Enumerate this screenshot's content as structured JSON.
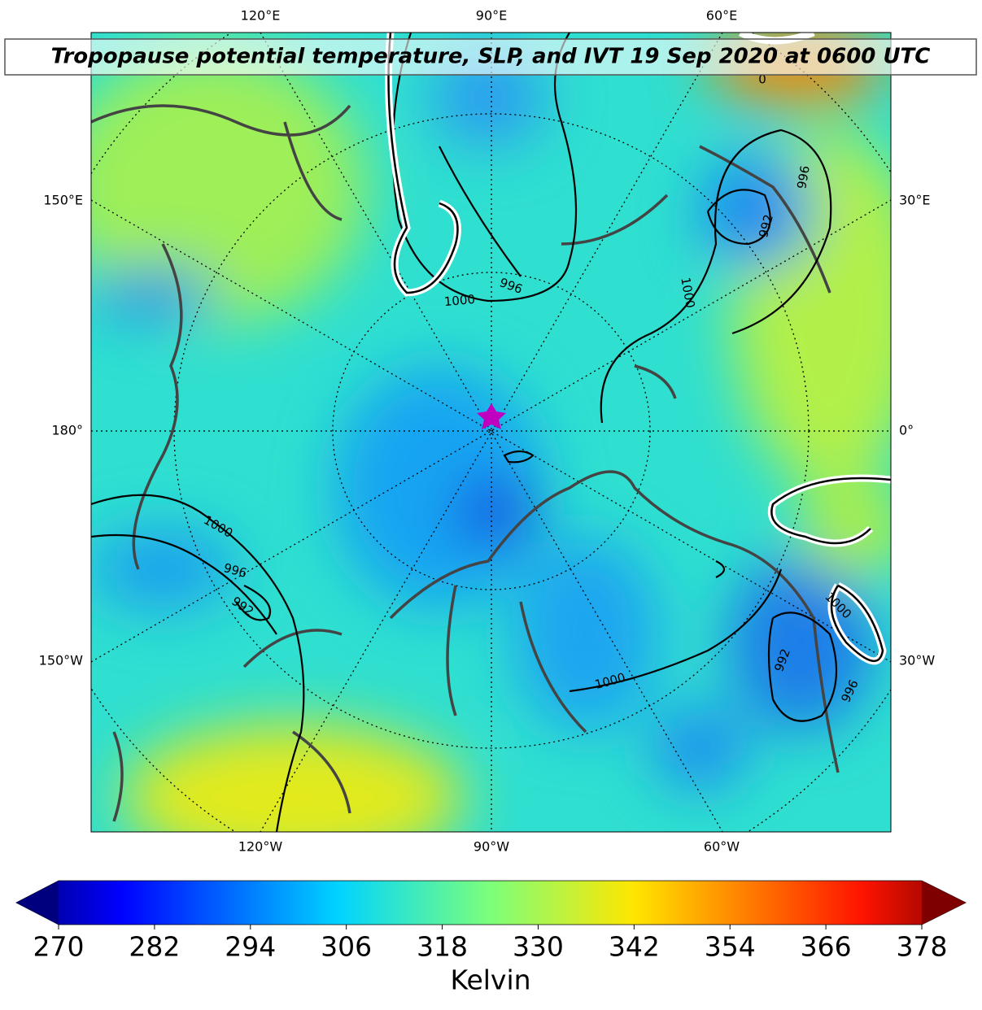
{
  "title": "Tropopause potential temperature, SLP, and IVT 19 Sep 2020 at 0600 UTC",
  "longitude_labels": {
    "top": [
      "120°E",
      "90°E",
      "60°E"
    ],
    "bottom": [
      "120°W",
      "90°W",
      "60°W"
    ],
    "left": [
      "150°E",
      "180°",
      "150°W"
    ],
    "right": [
      "30°E",
      "0°",
      "30°W"
    ]
  },
  "contour_labels": [
    "1000",
    "996",
    "1000",
    "996",
    "992",
    "1000",
    "1000",
    "992",
    "996",
    "992",
    "996",
    "1000",
    "0"
  ],
  "colorbar": {
    "ticks": [
      270,
      282,
      294,
      306,
      318,
      330,
      342,
      354,
      366,
      378
    ],
    "label": "Kelvin"
  }
}
